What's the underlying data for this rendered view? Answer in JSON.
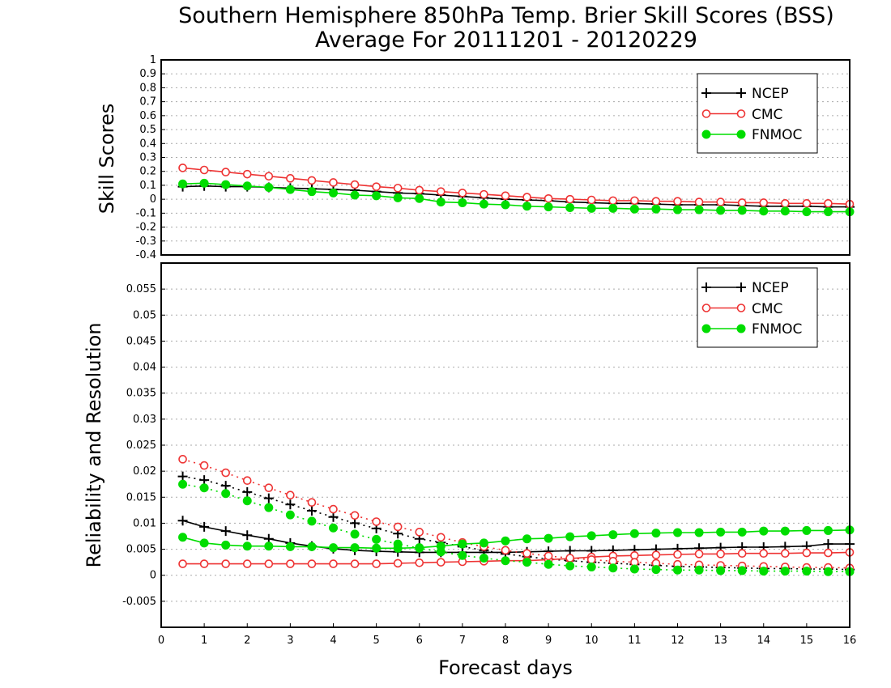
{
  "chart_data": [
    {
      "type": "line",
      "title": "Southern Hemisphere 850hPa Temp. Brier Skill Scores (BSS)",
      "subtitle": "Average For 20111201 - 20120229",
      "ylabel": "Skill Scores",
      "xlim": [
        0,
        16
      ],
      "ylim": [
        -0.4,
        1
      ],
      "yticks": [
        "-0.4",
        "-0.3",
        "-0.2",
        "-0.1",
        "0",
        "0.1",
        "0.2",
        "0.3",
        "0.4",
        "0.5",
        "0.6",
        "0.7",
        "0.8",
        "0.9",
        "1"
      ],
      "grid": true,
      "legend": "top-right",
      "x": [
        0.5,
        1,
        1.5,
        2,
        2.5,
        3,
        3.5,
        4,
        4.5,
        5,
        5.5,
        6,
        6.5,
        7,
        7.5,
        8,
        8.5,
        9,
        9.5,
        10,
        10.5,
        11,
        11.5,
        12,
        12.5,
        13,
        13.5,
        14,
        14.5,
        15,
        15.5,
        16
      ],
      "series": [
        {
          "name": "NCEP",
          "color": "#000000",
          "marker": "plus",
          "style": "solid",
          "values": [
            0.09,
            0.095,
            0.09,
            0.09,
            0.085,
            0.08,
            0.075,
            0.07,
            0.065,
            0.055,
            0.045,
            0.04,
            0.03,
            0.02,
            0.01,
            0.0,
            -0.005,
            -0.01,
            -0.02,
            -0.025,
            -0.03,
            -0.03,
            -0.035,
            -0.04,
            -0.04,
            -0.04,
            -0.045,
            -0.05,
            -0.05,
            -0.05,
            -0.055,
            -0.055
          ]
        },
        {
          "name": "CMC",
          "color": "#ee3333",
          "marker": "open-circle",
          "style": "solid",
          "values": [
            0.225,
            0.21,
            0.195,
            0.18,
            0.165,
            0.15,
            0.135,
            0.12,
            0.105,
            0.09,
            0.08,
            0.065,
            0.055,
            0.045,
            0.035,
            0.025,
            0.015,
            0.005,
            0.0,
            -0.005,
            -0.01,
            -0.01,
            -0.015,
            -0.015,
            -0.02,
            -0.02,
            -0.025,
            -0.025,
            -0.03,
            -0.03,
            -0.03,
            -0.035
          ]
        },
        {
          "name": "FNMOC",
          "color": "#00dd00",
          "marker": "filled-circle",
          "style": "solid",
          "values": [
            0.11,
            0.115,
            0.105,
            0.095,
            0.085,
            0.07,
            0.055,
            0.045,
            0.03,
            0.025,
            0.01,
            0.005,
            -0.02,
            -0.025,
            -0.035,
            -0.04,
            -0.05,
            -0.055,
            -0.06,
            -0.065,
            -0.065,
            -0.07,
            -0.07,
            -0.075,
            -0.075,
            -0.08,
            -0.08,
            -0.085,
            -0.085,
            -0.09,
            -0.09,
            -0.09
          ]
        }
      ]
    },
    {
      "type": "line",
      "ylabel": "Reliability and Resolution",
      "xlabel": "Forecast days",
      "xlim": [
        0,
        16
      ],
      "ylim": [
        -0.01,
        0.06
      ],
      "xticks": [
        "0",
        "1",
        "2",
        "3",
        "4",
        "5",
        "6",
        "7",
        "8",
        "9",
        "10",
        "11",
        "12",
        "13",
        "14",
        "15",
        "16"
      ],
      "yticks": [
        "-0.005",
        "0",
        "0.005",
        "0.01",
        "0.015",
        "0.02",
        "0.025",
        "0.03",
        "0.035",
        "0.04",
        "0.045",
        "0.05",
        "0.055"
      ],
      "grid": true,
      "legend": "top-right",
      "x": [
        0.5,
        1,
        1.5,
        2,
        2.5,
        3,
        3.5,
        4,
        4.5,
        5,
        5.5,
        6,
        6.5,
        7,
        7.5,
        8,
        8.5,
        9,
        9.5,
        10,
        10.5,
        11,
        11.5,
        12,
        12.5,
        13,
        13.5,
        14,
        14.5,
        15,
        15.5,
        16
      ],
      "series": [
        {
          "name": "NCEP",
          "color": "#000000",
          "marker": "plus",
          "style": "solid",
          "values": [
            0.0105,
            0.0093,
            0.0085,
            0.0077,
            0.007,
            0.0062,
            0.0056,
            0.0051,
            0.0048,
            0.0046,
            0.0045,
            0.0044,
            0.0044,
            0.0044,
            0.0044,
            0.0044,
            0.0045,
            0.0046,
            0.0047,
            0.0047,
            0.0048,
            0.0049,
            0.005,
            0.0051,
            0.0052,
            0.0053,
            0.0054,
            0.0054,
            0.0055,
            0.0056,
            0.006,
            0.006
          ]
        },
        {
          "name": "NCEP",
          "color": "#000000",
          "marker": "plus",
          "style": "dotted",
          "values": [
            0.019,
            0.0183,
            0.0172,
            0.016,
            0.0148,
            0.0136,
            0.0124,
            0.0112,
            0.01,
            0.009,
            0.008,
            0.007,
            0.0063,
            0.0055,
            0.0048,
            0.0041,
            0.0036,
            0.0031,
            0.0028,
            0.0025,
            0.0023,
            0.0021,
            0.0019,
            0.0017,
            0.0016,
            0.0015,
            0.0014,
            0.0013,
            0.0013,
            0.0012,
            0.0012,
            0.0011
          ]
        },
        {
          "name": "CMC",
          "color": "#ee3333",
          "marker": "open-circle",
          "style": "solid",
          "values": [
            0.0022,
            0.0022,
            0.0022,
            0.0022,
            0.0022,
            0.0022,
            0.0022,
            0.0022,
            0.0022,
            0.0022,
            0.0023,
            0.0024,
            0.0025,
            0.0026,
            0.0027,
            0.0028,
            0.0028,
            0.003,
            0.0032,
            0.0035,
            0.0037,
            0.0038,
            0.0039,
            0.004,
            0.0041,
            0.0041,
            0.0042,
            0.0042,
            0.0042,
            0.0043,
            0.0043,
            0.0044
          ]
        },
        {
          "name": "CMC",
          "color": "#ee3333",
          "marker": "open-circle",
          "style": "dotted",
          "values": [
            0.0223,
            0.0211,
            0.0197,
            0.0182,
            0.0168,
            0.0154,
            0.014,
            0.0127,
            0.0115,
            0.0103,
            0.0093,
            0.0083,
            0.0073,
            0.0063,
            0.0055,
            0.0048,
            0.0042,
            0.0037,
            0.0033,
            0.003,
            0.0027,
            0.0025,
            0.0023,
            0.0021,
            0.002,
            0.0019,
            0.0018,
            0.0017,
            0.0016,
            0.0015,
            0.0015,
            0.0014
          ]
        },
        {
          "name": "FNMOC",
          "color": "#00dd00",
          "marker": "filled-circle",
          "style": "solid",
          "values": [
            0.0073,
            0.0062,
            0.0058,
            0.0056,
            0.0056,
            0.0055,
            0.0055,
            0.0053,
            0.0053,
            0.0052,
            0.0052,
            0.0053,
            0.0056,
            0.006,
            0.0062,
            0.0066,
            0.007,
            0.0071,
            0.0074,
            0.0076,
            0.0078,
            0.008,
            0.0081,
            0.0082,
            0.0082,
            0.0083,
            0.0083,
            0.0085,
            0.0085,
            0.0086,
            0.0086,
            0.0087
          ]
        },
        {
          "name": "FNMOC",
          "color": "#00dd00",
          "marker": "filled-circle",
          "style": "dotted",
          "values": [
            0.0175,
            0.0168,
            0.0157,
            0.0143,
            0.013,
            0.0116,
            0.0104,
            0.0091,
            0.0079,
            0.0069,
            0.006,
            0.0052,
            0.0045,
            0.0038,
            0.0033,
            0.0028,
            0.0025,
            0.0021,
            0.0018,
            0.0016,
            0.0014,
            0.0012,
            0.0011,
            0.001,
            0.001,
            0.0009,
            0.0009,
            0.0008,
            0.0008,
            0.0008,
            0.0007,
            0.0007
          ]
        }
      ]
    }
  ],
  "legend": {
    "entries": [
      {
        "label": "NCEP"
      },
      {
        "label": "CMC"
      },
      {
        "label": "FNMOC"
      }
    ]
  }
}
